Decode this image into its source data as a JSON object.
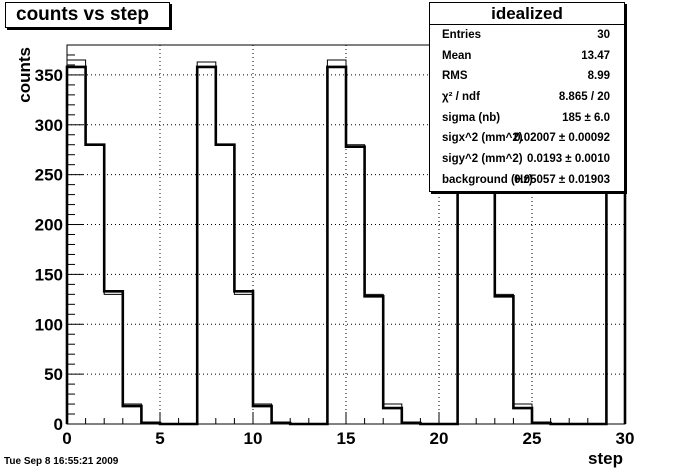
{
  "title": "counts vs step",
  "timestamp": "Tue Sep  8 16:55:21 2009",
  "stats_box": {
    "title": "idealized",
    "rows": [
      {
        "label": "Entries",
        "value": "30"
      },
      {
        "label": "Mean",
        "value": "13.47"
      },
      {
        "label": "RMS",
        "value": "8.99"
      },
      {
        "label": "χ² / ndf",
        "value": "8.865 / 20"
      },
      {
        "label": "sigma (nb)",
        "value": "185 ± 6.0"
      },
      {
        "label": "sigx^2 (mm^2)",
        "value": "0.02007 ± 0.00092"
      },
      {
        "label": "sigy^2 (mm^2)",
        "value": "0.0193 ± 0.0010"
      },
      {
        "label": "background (Hz)",
        "value": "0.05057 ± 0.01903"
      }
    ]
  },
  "chart_data": {
    "type": "line",
    "title": "counts vs step",
    "xlabel": "step",
    "ylabel": "counts",
    "xlim": [
      0,
      30
    ],
    "ylim": [
      0,
      380
    ],
    "x_ticks": [
      0,
      5,
      10,
      15,
      20,
      25,
      30
    ],
    "y_ticks": [
      0,
      50,
      100,
      150,
      200,
      250,
      300,
      350
    ],
    "grid": true,
    "bin_width": 1,
    "series": [
      {
        "style": "thin-histogram",
        "values": [
          365,
          280,
          130,
          20,
          2,
          0,
          0,
          363,
          280,
          130,
          20,
          2,
          0,
          0,
          365,
          280,
          130,
          20,
          2,
          0,
          0,
          365,
          280,
          130,
          20,
          2,
          0,
          0,
          0,
          365
        ]
      },
      {
        "style": "thick-fit",
        "values": [
          358,
          280,
          133,
          18,
          1,
          0,
          0,
          358,
          280,
          133,
          18,
          1,
          0,
          0,
          358,
          278,
          128,
          16,
          1,
          0,
          0,
          358,
          278,
          128,
          16,
          1,
          0,
          0,
          0,
          358
        ]
      }
    ]
  }
}
